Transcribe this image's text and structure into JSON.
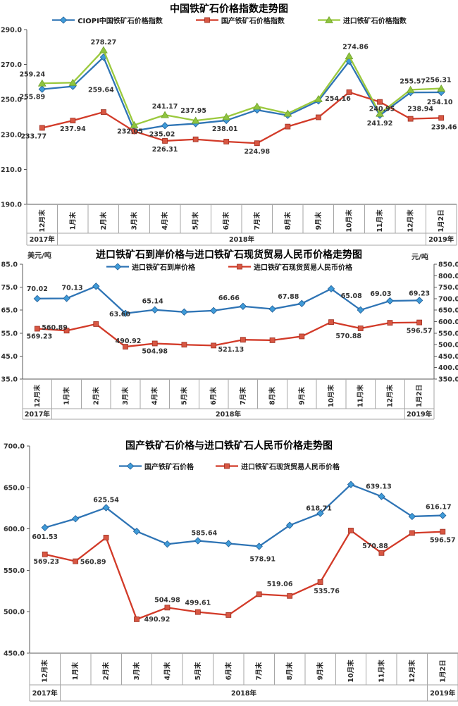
{
  "page": {
    "background": "#FFFFFF"
  },
  "categories": [
    "12月末",
    "1月末",
    "2月末",
    "3月末",
    "4月末",
    "5月末",
    "6月末",
    "7月末",
    "8月末",
    "9月末",
    "10月末",
    "11月末",
    "12月末",
    "1月2日"
  ],
  "years": [
    "2017年",
    "2018年",
    "2019年"
  ],
  "chart_data": [
    {
      "type": "line",
      "title": "中国铁矿石价格指数走势图",
      "y_ticks": [
        "290.0",
        "270.0",
        "250.0",
        "230.0",
        "210.0",
        "190.0"
      ],
      "y_max": 290,
      "y_min": 190,
      "legend": [
        {
          "label": "CIOPI中国铁矿石价格指数",
          "color": "#2E74B5",
          "marker": "diamond",
          "marker_fill": "#3F9BD8",
          "marker_stroke": "#1F5C96"
        },
        {
          "label": "国产铁矿石价格指数",
          "color": "#D23A28",
          "marker": "square",
          "marker_fill": "#D85743",
          "marker_stroke": "#9C2D1F"
        },
        {
          "label": "进口铁矿石价格指数",
          "color": "#9BC93D",
          "marker": "triangle",
          "marker_fill": "#8FC43F",
          "marker_stroke": "#71A32C"
        }
      ],
      "series": [
        {
          "name": "CIOPI中国铁矿石价格指数",
          "axis": "left",
          "color": "#2E74B5",
          "marker": "diamond",
          "marker_fill": "#3F9BD8",
          "marker_stroke": "#1F5C96",
          "values": [
            255.89,
            257.5,
            274.2,
            232.05,
            235.02,
            236.2,
            238.01,
            244.0,
            240.9,
            249.2,
            271.8,
            240.95,
            254.0,
            254.1
          ],
          "labels": [
            {
              "i": 0,
              "text": "255.89",
              "dx": -14,
              "dy": 14
            },
            {
              "i": 3,
              "text": "232.05",
              "dx": -6,
              "dy": 4
            },
            {
              "i": 4,
              "text": "235.02",
              "dx": -4,
              "dy": 15
            },
            {
              "i": 6,
              "text": "238.01",
              "dx": -2,
              "dy": 15
            },
            {
              "i": 11,
              "text": "240.95",
              "dx": 3,
              "dy": -6
            },
            {
              "i": 13,
              "text": "254.10",
              "dx": -2,
              "dy": 17
            }
          ]
        },
        {
          "name": "国产铁矿石价格指数",
          "axis": "left",
          "color": "#D23A28",
          "marker": "square",
          "marker_fill": "#D85743",
          "marker_stroke": "#9C2D1F",
          "values": [
            233.77,
            237.94,
            242.8,
            231.8,
            226.31,
            227.2,
            225.9,
            224.98,
            234.5,
            239.8,
            254.16,
            248.6,
            238.94,
            239.46
          ],
          "labels": [
            {
              "i": 0,
              "text": "233.77",
              "dx": -12,
              "dy": 15
            },
            {
              "i": 1,
              "text": "237.94",
              "dx": 0,
              "dy": 15
            },
            {
              "i": 4,
              "text": "226.31",
              "dx": 0,
              "dy": 15
            },
            {
              "i": 7,
              "text": "224.98",
              "dx": 0,
              "dy": 15
            },
            {
              "i": 10,
              "text": "254.16",
              "dx": -16,
              "dy": 12
            },
            {
              "i": 12,
              "text": "238.94",
              "dx": 14,
              "dy": -11
            },
            {
              "i": 13,
              "text": "239.46",
              "dx": 4,
              "dy": 16
            }
          ]
        },
        {
          "name": "进口铁矿石价格指数",
          "axis": "left",
          "color": "#9BC93D",
          "marker": "triangle",
          "marker_fill": "#8FC43F",
          "marker_stroke": "#71A32C",
          "values": [
            259.24,
            259.64,
            278.27,
            235.4,
            241.17,
            237.95,
            240.0,
            246.0,
            242.0,
            250.3,
            274.86,
            241.92,
            255.57,
            256.31
          ],
          "labels": [
            {
              "i": 0,
              "text": "259.24",
              "dx": -14,
              "dy": -10
            },
            {
              "i": 1,
              "text": "259.64",
              "dx": 40,
              "dy": 13
            },
            {
              "i": 2,
              "text": "278.27",
              "dx": 0,
              "dy": -8
            },
            {
              "i": 4,
              "text": "241.17",
              "dx": 0,
              "dy": -9
            },
            {
              "i": 5,
              "text": "237.95",
              "dx": -3,
              "dy": -11
            },
            {
              "i": 10,
              "text": "274.86",
              "dx": 9,
              "dy": -10
            },
            {
              "i": 11,
              "text": "241.92",
              "dx": 0,
              "dy": 17
            },
            {
              "i": 12,
              "text": "255.57",
              "dx": 3,
              "dy": -9
            },
            {
              "i": 13,
              "text": "256.31",
              "dx": -4,
              "dy": -9
            }
          ]
        }
      ]
    },
    {
      "type": "line",
      "title": "进口铁矿石到岸价格与进口铁矿石现货贸易人民币价格走势图",
      "unit_left": "美元/吨",
      "unit_right": "元/吨",
      "y_ticks": [
        "85.0",
        "75.0",
        "65.0",
        "55.0",
        "45.0",
        "35.0"
      ],
      "y_max": 85,
      "y_min": 35,
      "right_ticks": [
        "850.0",
        "800.0",
        "750.0",
        "700.0",
        "650.0",
        "600.0",
        "550.0",
        "500.0",
        "450.0",
        "400.0",
        "350.0"
      ],
      "right_max": 850,
      "right_min": 350,
      "legend": [
        {
          "label": "进口铁矿石到岸价格",
          "color": "#2E74B5",
          "marker": "diamond",
          "marker_fill": "#3F9BD8",
          "marker_stroke": "#1F5C96"
        },
        {
          "label": "进口铁矿石现货贸易人民币价格",
          "color": "#D23A28",
          "marker": "square",
          "marker_fill": "#D85743",
          "marker_stroke": "#9C2D1F"
        }
      ],
      "series": [
        {
          "name": "进口铁矿石到岸价格",
          "axis": "left",
          "color": "#2E74B5",
          "marker": "diamond",
          "marker_fill": "#3F9BD8",
          "marker_stroke": "#1F5C96",
          "values": [
            70.02,
            70.13,
            75.4,
            63.6,
            65.14,
            64.2,
            64.8,
            66.66,
            65.5,
            67.88,
            74.3,
            65.08,
            69.03,
            69.23
          ],
          "labels": [
            {
              "i": 0,
              "text": "70.02",
              "dx": 0,
              "dy": -11
            },
            {
              "i": 1,
              "text": "70.13",
              "dx": 8,
              "dy": -12
            },
            {
              "i": 3,
              "text": "63.60",
              "dx": -8,
              "dy": 4
            },
            {
              "i": 4,
              "text": "65.14",
              "dx": -3,
              "dy": -9
            },
            {
              "i": 7,
              "text": "66.66",
              "dx": -20,
              "dy": -9
            },
            {
              "i": 9,
              "text": "67.88",
              "dx": -19,
              "dy": -7
            },
            {
              "i": 11,
              "text": "65.08",
              "dx": -13,
              "dy": -17
            },
            {
              "i": 12,
              "text": "69.03",
              "dx": -13,
              "dy": -7
            },
            {
              "i": 13,
              "text": "69.23",
              "dx": 0,
              "dy": -7
            }
          ]
        },
        {
          "name": "进口铁矿石现货贸易人民币价格",
          "axis": "right",
          "color": "#D23A28",
          "marker": "square",
          "marker_fill": "#D85743",
          "marker_stroke": "#9C2D1F",
          "values": [
            569.23,
            560.89,
            589.5,
            490.92,
            504.98,
            499.61,
            496.0,
            521.13,
            519.06,
            535.76,
            598.0,
            570.88,
            595.0,
            596.57
          ],
          "labels": [
            {
              "i": 0,
              "text": "569.23",
              "dx": 3,
              "dy": 14
            },
            {
              "i": 1,
              "text": "560.89",
              "dx": -17,
              "dy": -1
            },
            {
              "i": 3,
              "text": "490.92",
              "dx": 4,
              "dy": -5
            },
            {
              "i": 4,
              "text": "504.98",
              "dx": 0,
              "dy": 14
            },
            {
              "i": 7,
              "text": "521.13",
              "dx": -17,
              "dy": 17
            },
            {
              "i": 11,
              "text": "570.88",
              "dx": -17,
              "dy": 14
            },
            {
              "i": 13,
              "text": "596.57",
              "dx": 0,
              "dy": 15
            }
          ]
        }
      ]
    },
    {
      "type": "line",
      "title": "国产铁矿石价格与进口铁矿石人民币价格走势图",
      "y_ticks": [
        "700.0",
        "650.0",
        "600.0",
        "550.0",
        "500.0",
        "450.0"
      ],
      "y_max": 700,
      "y_min": 450,
      "legend": [
        {
          "label": "国产铁矿石价格",
          "color": "#2E74B5",
          "marker": "diamond",
          "marker_fill": "#3F9BD8",
          "marker_stroke": "#1F5C96"
        },
        {
          "label": "进口铁矿石现货贸易人民币价格",
          "color": "#D23A28",
          "marker": "square",
          "marker_fill": "#D85743",
          "marker_stroke": "#9C2D1F"
        }
      ],
      "series": [
        {
          "name": "国产铁矿石价格",
          "axis": "left",
          "color": "#2E74B5",
          "marker": "diamond",
          "marker_fill": "#3F9BD8",
          "marker_stroke": "#1F5C96",
          "values": [
            601.53,
            612.2,
            625.54,
            597.0,
            581.6,
            585.64,
            582.3,
            578.91,
            604.3,
            618.71,
            653.5,
            639.13,
            615.0,
            616.17
          ],
          "labels": [
            {
              "i": 0,
              "text": "601.53",
              "dx": 0,
              "dy": 16
            },
            {
              "i": 2,
              "text": "625.54",
              "dx": 0,
              "dy": -8
            },
            {
              "i": 5,
              "text": "585.64",
              "dx": 9,
              "dy": -8
            },
            {
              "i": 7,
              "text": "578.91",
              "dx": 5,
              "dy": 21
            },
            {
              "i": 9,
              "text": "618.71",
              "dx": -2,
              "dy": -4
            },
            {
              "i": 11,
              "text": "639.13",
              "dx": -4,
              "dy": -11
            },
            {
              "i": 13,
              "text": "616.17",
              "dx": -6,
              "dy": -9
            }
          ]
        },
        {
          "name": "进口铁矿石现货贸易人民币价格",
          "axis": "left",
          "color": "#D23A28",
          "marker": "square",
          "marker_fill": "#D85743",
          "marker_stroke": "#9C2D1F",
          "values": [
            569.23,
            560.89,
            589.5,
            490.92,
            504.98,
            499.61,
            496.0,
            521.13,
            519.06,
            535.76,
            598.0,
            570.88,
            595.0,
            596.57
          ],
          "labels": [
            {
              "i": 0,
              "text": "569.23",
              "dx": 2,
              "dy": 13
            },
            {
              "i": 1,
              "text": "560.89",
              "dx": 25,
              "dy": 4
            },
            {
              "i": 3,
              "text": "490.92",
              "dx": 29,
              "dy": 3
            },
            {
              "i": 4,
              "text": "504.98",
              "dx": 0,
              "dy": -8
            },
            {
              "i": 5,
              "text": "499.61",
              "dx": 0,
              "dy": -10
            },
            {
              "i": 8,
              "text": "519.06",
              "dx": -14,
              "dy": -14
            },
            {
              "i": 9,
              "text": "535.76",
              "dx": 9,
              "dy": 16
            },
            {
              "i": 11,
              "text": "570.88",
              "dx": -9,
              "dy": -7
            },
            {
              "i": 13,
              "text": "596.57",
              "dx": 0,
              "dy": 15
            }
          ]
        }
      ]
    }
  ]
}
